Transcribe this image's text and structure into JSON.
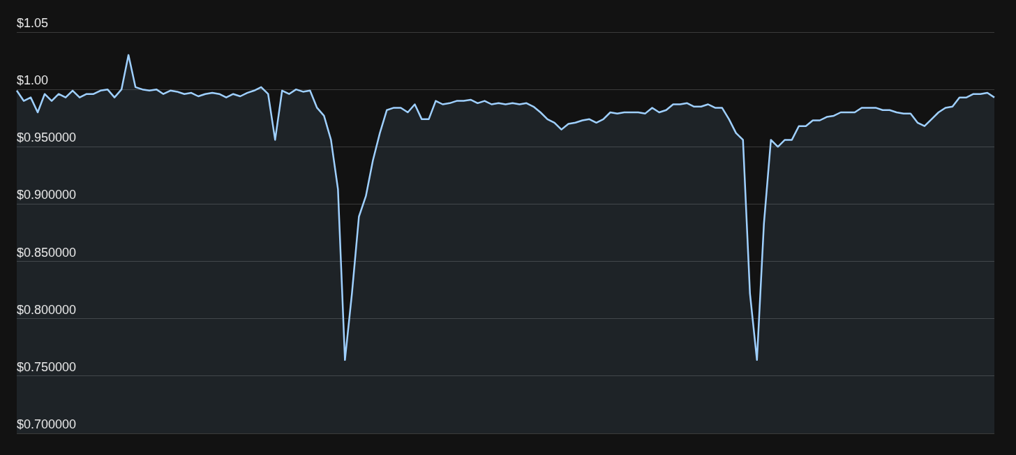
{
  "chart_data": {
    "type": "area",
    "categories": [
      null,
      null,
      null,
      null,
      null,
      null,
      null,
      null,
      null,
      null,
      null,
      null,
      null,
      null,
      null,
      null,
      null,
      null,
      null,
      null,
      null,
      null,
      null,
      null,
      null,
      null,
      null,
      null,
      null,
      null,
      null,
      null,
      null,
      null,
      null,
      null,
      null,
      null,
      null,
      null,
      null,
      null,
      null,
      null,
      null,
      null,
      null,
      null,
      null,
      null,
      null,
      null,
      null,
      null,
      null,
      null,
      null,
      null,
      null,
      null,
      null,
      null,
      null,
      null,
      null,
      null,
      null,
      null,
      null,
      null,
      null,
      null,
      null,
      null,
      null,
      null,
      null,
      null,
      null,
      null,
      null,
      null,
      null,
      null,
      null,
      null,
      null,
      null,
      null,
      null,
      null,
      null,
      null,
      null,
      null,
      null,
      null,
      null,
      null,
      null,
      null,
      null,
      null,
      null,
      null,
      null,
      null,
      null,
      null,
      null,
      null,
      null,
      null,
      null,
      null,
      null,
      null,
      null,
      null,
      null,
      null,
      null,
      null,
      null,
      null,
      null,
      null,
      null,
      null,
      null,
      null,
      null,
      null,
      null,
      null,
      null,
      null,
      null,
      null,
      null,
      null
    ],
    "series": [
      {
        "color": "#9fd0ff",
        "values": [
          0.999,
          0.99,
          0.993,
          0.98,
          0.996,
          0.99,
          0.996,
          0.993,
          0.999,
          0.993,
          0.996,
          0.996,
          0.999,
          1.0,
          0.993,
          1.0,
          1.03,
          1.002,
          1.0,
          0.999,
          1.0,
          0.996,
          0.999,
          0.998,
          0.996,
          0.997,
          0.994,
          0.996,
          0.997,
          0.996,
          0.993,
          0.996,
          0.994,
          0.997,
          0.999,
          1.002,
          0.996,
          0.956,
          0.999,
          0.996,
          1.0,
          0.998,
          0.999,
          0.984,
          0.977,
          0.956,
          0.913,
          0.764,
          0.822,
          0.889,
          0.907,
          0.938,
          0.962,
          0.982,
          0.984,
          0.984,
          0.98,
          0.987,
          0.974,
          0.974,
          0.99,
          0.987,
          0.988,
          0.99,
          0.99,
          0.991,
          0.988,
          0.99,
          0.987,
          0.988,
          0.987,
          0.988,
          0.987,
          0.988,
          0.985,
          0.98,
          0.974,
          0.971,
          0.965,
          0.97,
          0.971,
          0.973,
          0.974,
          0.971,
          0.974,
          0.98,
          0.979,
          0.98,
          0.98,
          0.98,
          0.979,
          0.984,
          0.98,
          0.982,
          0.987,
          0.987,
          0.988,
          0.985,
          0.985,
          0.987,
          0.984,
          0.984,
          0.974,
          0.962,
          0.956,
          0.822,
          0.764,
          0.883,
          0.956,
          0.95,
          0.956,
          0.956,
          0.968,
          0.968,
          0.973,
          0.973,
          0.976,
          0.977,
          0.98,
          0.98,
          0.98,
          0.984,
          0.984,
          0.984,
          0.982,
          0.982,
          0.98,
          0.979,
          0.979,
          0.971,
          0.968,
          0.974,
          0.98,
          0.984,
          0.985,
          0.993,
          0.993,
          0.996,
          0.996,
          0.997,
          0.993
        ]
      }
    ],
    "ylim": [
      0.7,
      1.05
    ],
    "yticks": [
      {
        "value": 0.7,
        "label": "$0.700000"
      },
      {
        "value": 0.75,
        "label": "$0.750000"
      },
      {
        "value": 0.8,
        "label": "$0.800000"
      },
      {
        "value": 0.85,
        "label": "$0.850000"
      },
      {
        "value": 0.9,
        "label": "$0.900000"
      },
      {
        "value": 0.95,
        "label": "$0.950000"
      },
      {
        "value": 1.0,
        "label": "$1.00"
      },
      {
        "value": 1.05,
        "label": "$1.05"
      }
    ],
    "grid": "y",
    "marker": "none",
    "legend": false
  }
}
